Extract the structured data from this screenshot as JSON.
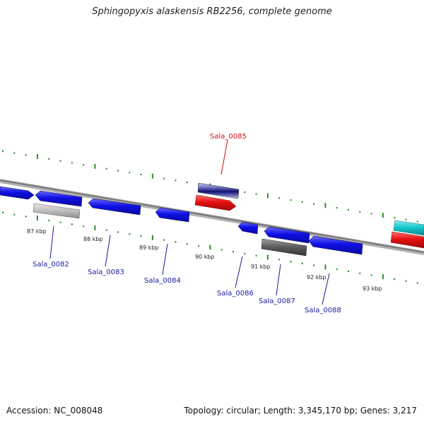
{
  "title": "Sphingopyxis alaskensis RB2256, complete genome",
  "footer": {
    "accession": "Accession: NC_008048",
    "stats": "Topology: circular; Length: 3,345,170 bp; Genes: 3,217"
  },
  "colors": {
    "backbone": "#8a8a8a",
    "tick": "#2e8b2e",
    "gene_blue": "#1010e6",
    "gene_red": "#e61010",
    "gene_cyan": "#18c8d0",
    "gene_gray": "#b8b8b8",
    "gene_darkgray": "#5a5a5a",
    "label_blue": "#1a1aa0",
    "label_red": "#d01010"
  },
  "scale_labels": [
    "87 kbp",
    "88 kbp",
    "89 kbp",
    "90 kbp",
    "91 kbp",
    "92 kbp",
    "93 kbp"
  ],
  "gene_labels": [
    {
      "name": "Sala_0082",
      "color": "blue"
    },
    {
      "name": "Sala_0083",
      "color": "blue"
    },
    {
      "name": "Sala_0084",
      "color": "blue"
    },
    {
      "name": "Sala_0085",
      "color": "red"
    },
    {
      "name": "Sala_0086",
      "color": "blue"
    },
    {
      "name": "Sala_0087",
      "color": "blue"
    },
    {
      "name": "Sala_0088",
      "color": "blue"
    }
  ]
}
